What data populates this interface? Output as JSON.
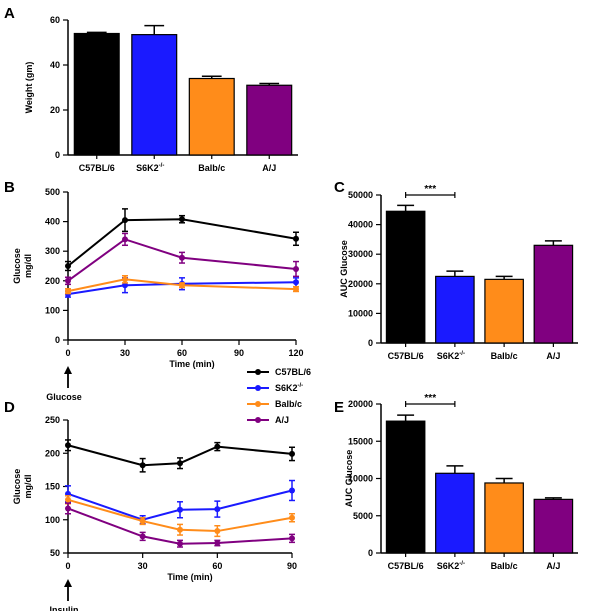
{
  "colors": {
    "C57BL/6": "#000000",
    "S6K2": "#1a1aff",
    "Balb/c": "#ff8c1a",
    "A/J": "#800080"
  },
  "legend": {
    "entries": [
      {
        "label": "C57BL/6",
        "color_key": "C57BL/6"
      },
      {
        "label": "S6K2",
        "sup": "-/-",
        "color_key": "S6K2"
      },
      {
        "label": "Balb/c",
        "color_key": "Balb/c"
      },
      {
        "label": "A/J",
        "color_key": "A/J"
      }
    ]
  },
  "chart_data": [
    {
      "panel": "A",
      "type": "bar",
      "title": "",
      "xlabel": "",
      "ylabel": "Weight (gm)",
      "ylim": [
        0,
        60
      ],
      "yticks": [
        0,
        20,
        40,
        60
      ],
      "categories": [
        {
          "label": "C57BL/6",
          "sup": ""
        },
        {
          "label": "S6K2",
          "sup": "-/-"
        },
        {
          "label": "Balb/c",
          "sup": ""
        },
        {
          "label": "A/J",
          "sup": ""
        }
      ],
      "color_keys": [
        "C57BL/6",
        "S6K2",
        "Balb/c",
        "A/J"
      ],
      "values": [
        54,
        53.5,
        34,
        31
      ],
      "errors": [
        0.5,
        4,
        1,
        0.8
      ]
    },
    {
      "panel": "B",
      "type": "line",
      "title": "",
      "xlabel": "Time (min)",
      "ylabel": [
        "Glucose",
        "mg/dl"
      ],
      "xlim": [
        0,
        120
      ],
      "ylim": [
        0,
        500
      ],
      "xticks": [
        0,
        30,
        60,
        90,
        120
      ],
      "yticks": [
        0,
        100,
        200,
        300,
        400,
        500
      ],
      "arrow_label": "Glucose",
      "x": [
        0,
        30,
        60,
        120
      ],
      "series": [
        {
          "name": "C57BL/6",
          "color_key": "C57BL/6",
          "values": [
            250,
            405,
            408,
            342
          ],
          "errors": [
            15,
            38,
            12,
            22
          ]
        },
        {
          "name": "S6K2",
          "color_key": "S6K2",
          "values": [
            155,
            185,
            190,
            195
          ],
          "errors": [
            10,
            25,
            20,
            15
          ]
        },
        {
          "name": "Balb/c",
          "color_key": "Balb/c",
          "values": [
            165,
            205,
            185,
            172
          ],
          "errors": [
            8,
            12,
            8,
            8
          ]
        },
        {
          "name": "A/J",
          "color_key": "A/J",
          "values": [
            200,
            340,
            278,
            240
          ],
          "errors": [
            12,
            20,
            18,
            25
          ]
        }
      ]
    },
    {
      "panel": "C",
      "type": "bar",
      "title": "",
      "xlabel": "",
      "ylabel": "AUC Glucose",
      "ylim": [
        0,
        50000
      ],
      "yticks": [
        0,
        10000,
        20000,
        30000,
        40000,
        50000
      ],
      "categories": [
        {
          "label": "C57BL/6",
          "sup": ""
        },
        {
          "label": "S6K2",
          "sup": "-/-"
        },
        {
          "label": "Balb/c",
          "sup": ""
        },
        {
          "label": "A/J",
          "sup": ""
        }
      ],
      "color_keys": [
        "C57BL/6",
        "S6K2",
        "Balb/c",
        "A/J"
      ],
      "values": [
        44500,
        22500,
        21500,
        33000
      ],
      "errors": [
        2000,
        1800,
        1000,
        1500
      ],
      "significance": {
        "from": 0,
        "to": 1,
        "label": "***"
      }
    },
    {
      "panel": "D",
      "type": "line",
      "title": "",
      "xlabel": "Time (min)",
      "ylabel": [
        "Glucose",
        "mg/dl"
      ],
      "xlim": [
        0,
        90
      ],
      "ylim": [
        50,
        250
      ],
      "xticks": [
        0,
        30,
        60,
        90
      ],
      "yticks": [
        50,
        100,
        150,
        200,
        250
      ],
      "arrow_label": "Insulin",
      "x": [
        0,
        30,
        45,
        60,
        90
      ],
      "series": [
        {
          "name": "C57BL/6",
          "color_key": "C57BL/6",
          "values": [
            212,
            182,
            185,
            210,
            199
          ],
          "errors": [
            8,
            10,
            8,
            6,
            10
          ]
        },
        {
          "name": "S6K2",
          "color_key": "S6K2",
          "values": [
            139,
            100,
            115,
            116,
            144
          ],
          "errors": [
            12,
            6,
            12,
            12,
            15
          ]
        },
        {
          "name": "Balb/c",
          "color_key": "Balb/c",
          "values": [
            130,
            98,
            85,
            83,
            103
          ],
          "errors": [
            6,
            5,
            8,
            8,
            6
          ]
        },
        {
          "name": "A/J",
          "color_key": "A/J",
          "values": [
            117,
            75,
            64,
            65,
            72
          ],
          "errors": [
            8,
            6,
            5,
            4,
            6
          ]
        }
      ]
    },
    {
      "panel": "E",
      "type": "bar",
      "title": "",
      "xlabel": "",
      "ylabel": "AUC Glucose",
      "ylim": [
        0,
        20000
      ],
      "yticks": [
        0,
        5000,
        10000,
        15000,
        20000
      ],
      "categories": [
        {
          "label": "C57BL/6",
          "sup": ""
        },
        {
          "label": "S6K2",
          "sup": "-/-"
        },
        {
          "label": "Balb/c",
          "sup": ""
        },
        {
          "label": "A/J",
          "sup": ""
        }
      ],
      "color_keys": [
        "C57BL/6",
        "S6K2",
        "Balb/c",
        "A/J"
      ],
      "values": [
        17700,
        10700,
        9400,
        7200
      ],
      "errors": [
        800,
        1000,
        600,
        200
      ],
      "significance": {
        "from": 0,
        "to": 1,
        "label": "***"
      }
    }
  ]
}
